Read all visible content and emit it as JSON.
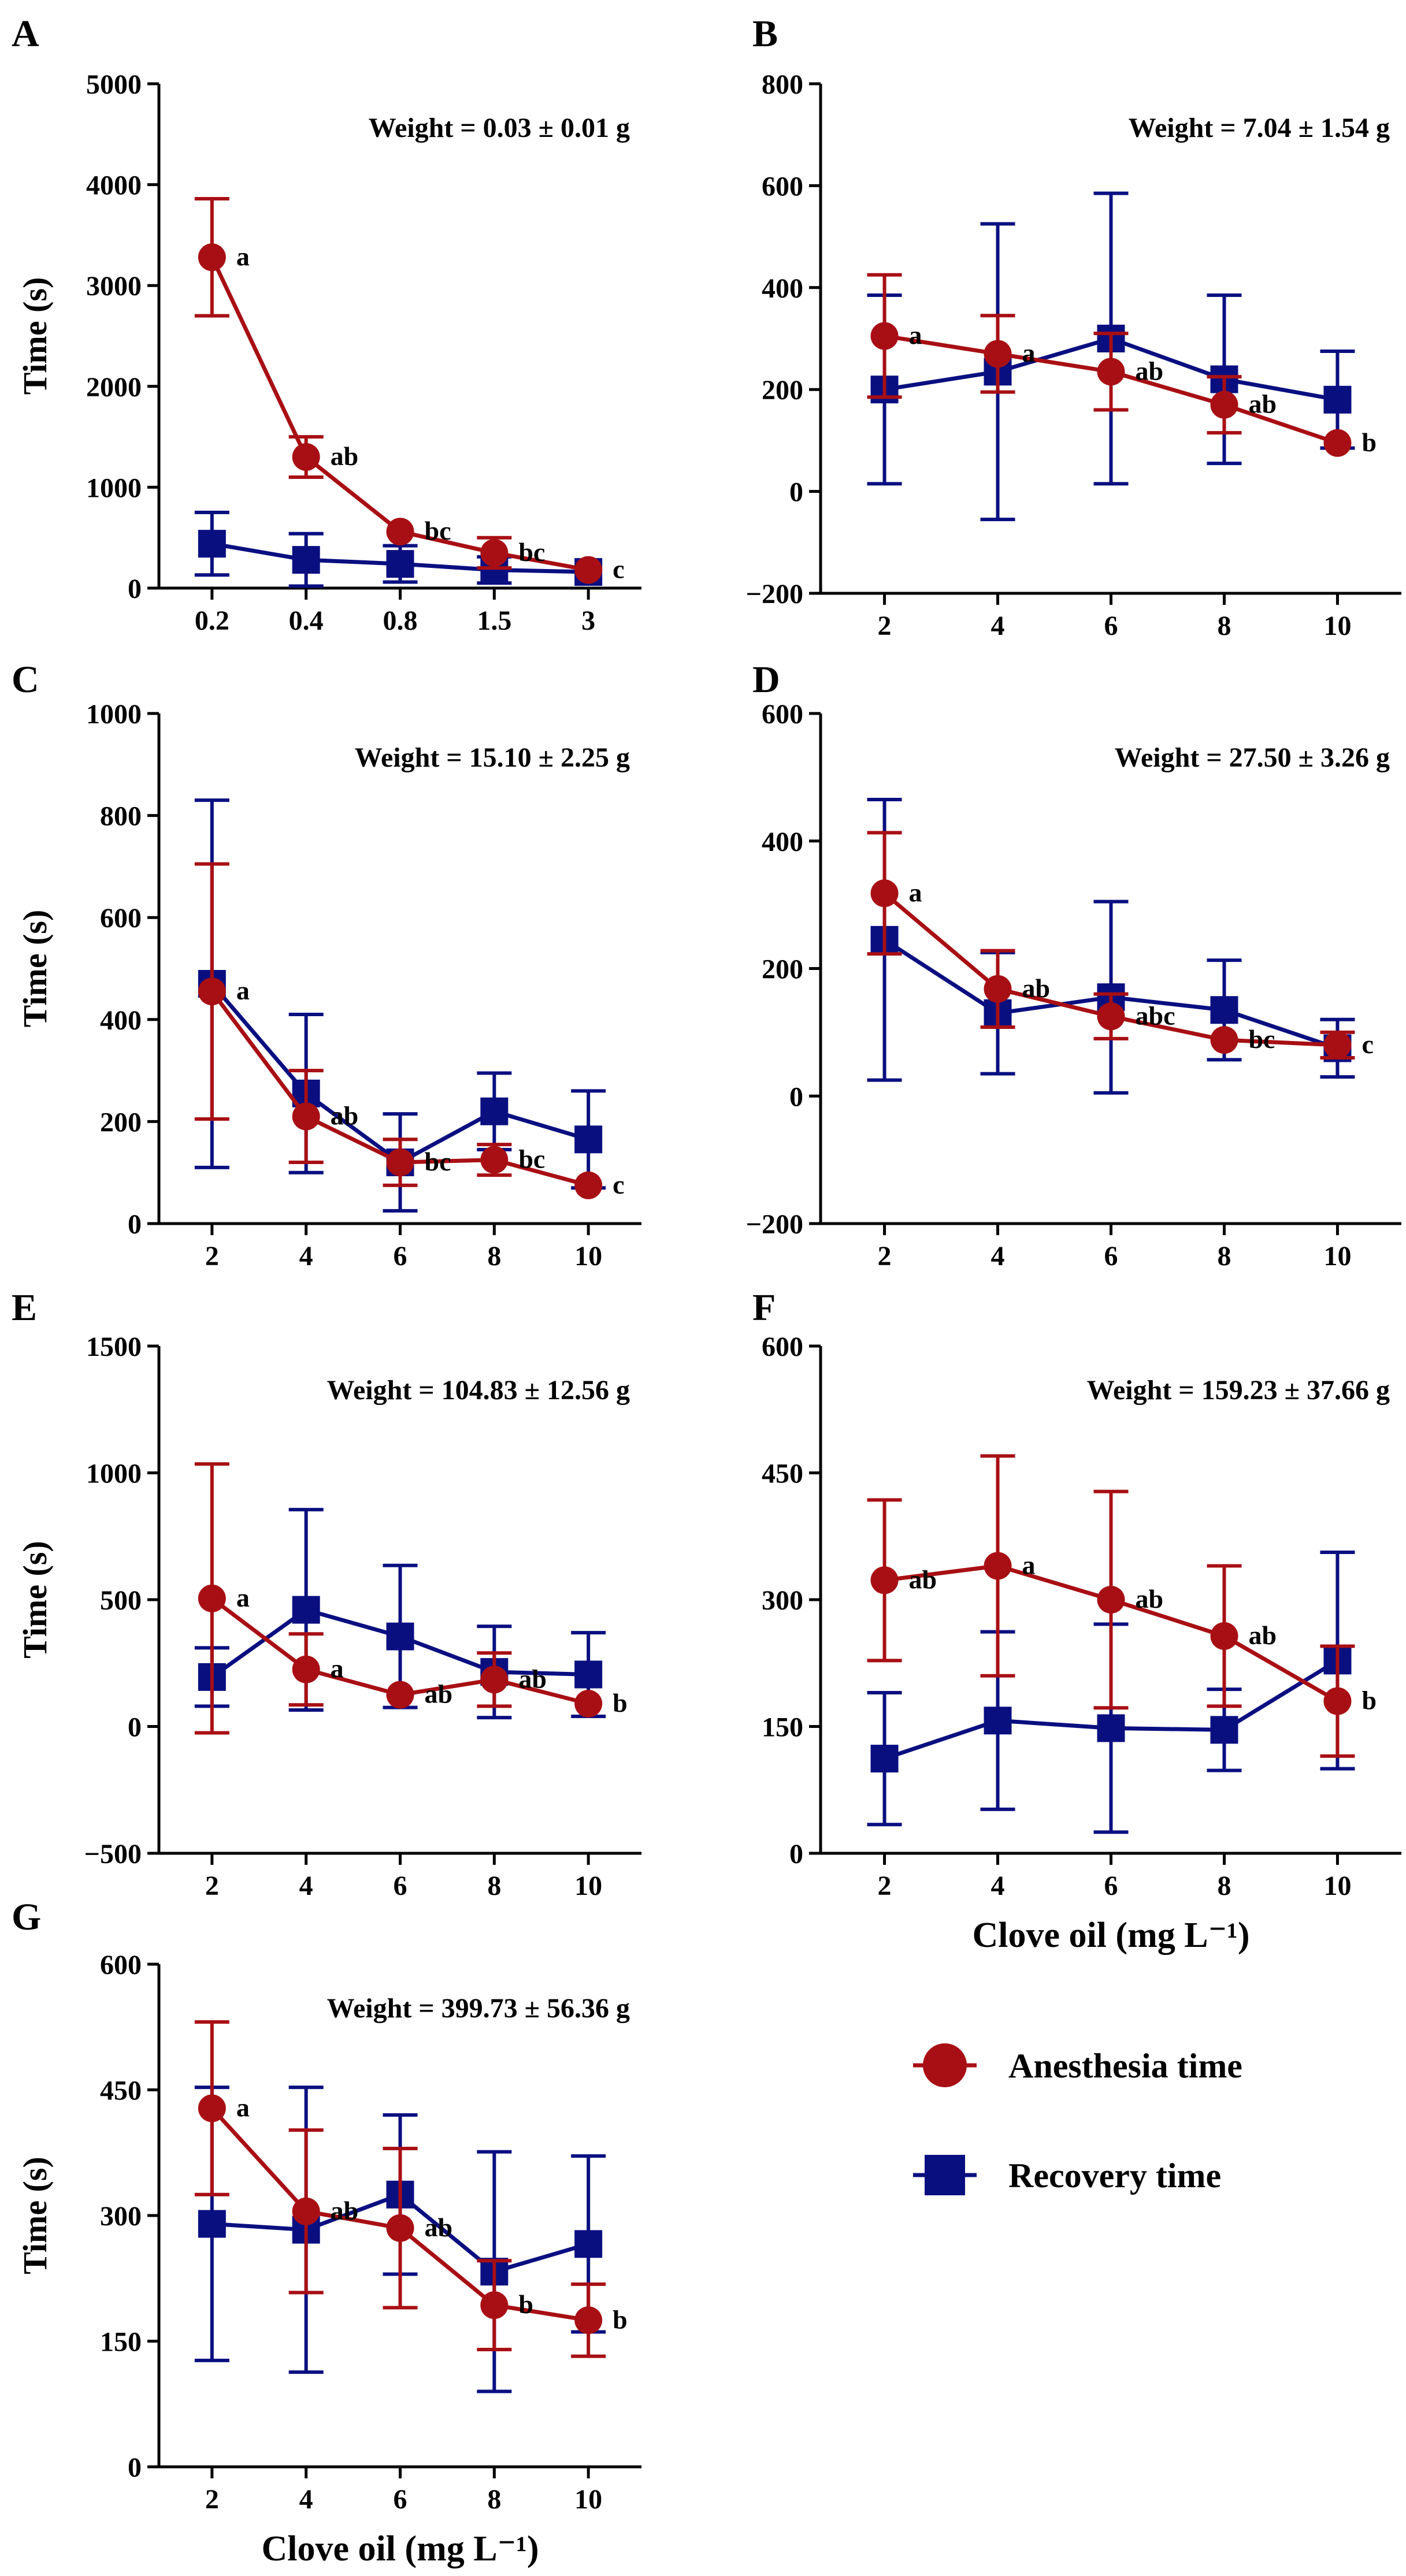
{
  "figure": {
    "colors": {
      "anesthesia": "#A80F14",
      "recovery": "#0A0F80",
      "axis": "#000000"
    },
    "legend": {
      "anesthesia_label": "Anesthesia time",
      "recovery_label": "Recovery time"
    }
  },
  "chart_data": [
    {
      "panel": "A",
      "type": "line",
      "title": "",
      "weight_label": "Weight = 0.03 ± 0.01 g",
      "xlabel": "",
      "ylabel": "Time (s)",
      "categories": [
        "0.2",
        "0.4",
        "0.8",
        "1.5",
        "3"
      ],
      "ylim": [
        0,
        5000
      ],
      "yticks": [
        0,
        1000,
        2000,
        3000,
        4000,
        5000
      ],
      "series": [
        {
          "name": "Anesthesia time",
          "values": [
            3280,
            1300,
            560,
            350,
            180
          ],
          "errors": [
            580,
            200,
            0,
            150,
            0
          ],
          "letters": [
            "a",
            "ab",
            "bc",
            "bc",
            "c"
          ]
        },
        {
          "name": "Recovery time",
          "values": [
            440,
            280,
            240,
            180,
            160
          ],
          "errors": [
            310,
            260,
            180,
            130,
            0
          ]
        }
      ]
    },
    {
      "panel": "B",
      "type": "line",
      "title": "",
      "weight_label": "Weight = 7.04 ± 1.54 g",
      "xlabel": "",
      "ylabel": "",
      "categories": [
        "2",
        "4",
        "6",
        "8",
        "10"
      ],
      "ylim": [
        -200,
        800
      ],
      "yticks": [
        -200,
        0,
        200,
        400,
        600,
        800
      ],
      "series": [
        {
          "name": "Anesthesia time",
          "values": [
            305,
            270,
            235,
            170,
            95
          ],
          "errors": [
            120,
            75,
            75,
            55,
            0
          ],
          "letters": [
            "a",
            "a",
            "ab",
            "ab",
            "b"
          ]
        },
        {
          "name": "Recovery time",
          "values": [
            200,
            235,
            300,
            220,
            180
          ],
          "errors": [
            185,
            290,
            285,
            165,
            95
          ]
        }
      ]
    },
    {
      "panel": "C",
      "type": "line",
      "title": "",
      "weight_label": "Weight = 15.10 ± 2.25 g",
      "xlabel": "",
      "ylabel": "Time (s)",
      "categories": [
        "2",
        "4",
        "6",
        "8",
        "10"
      ],
      "ylim": [
        0,
        1000
      ],
      "yticks": [
        0,
        200,
        400,
        600,
        800,
        1000
      ],
      "series": [
        {
          "name": "Anesthesia time",
          "values": [
            455,
            210,
            120,
            125,
            75
          ],
          "errors": [
            250,
            90,
            45,
            30,
            0
          ],
          "letters": [
            "a",
            "ab",
            "bc",
            "bc",
            "c"
          ]
        },
        {
          "name": "Recovery time",
          "values": [
            470,
            255,
            120,
            220,
            165
          ],
          "errors": [
            360,
            155,
            95,
            75,
            95
          ]
        }
      ]
    },
    {
      "panel": "D",
      "type": "line",
      "title": "",
      "weight_label": "Weight = 27.50 ± 3.26 g",
      "xlabel": "",
      "ylabel": "",
      "categories": [
        "2",
        "4",
        "6",
        "8",
        "10"
      ],
      "ylim": [
        -200,
        600
      ],
      "yticks": [
        -200,
        0,
        200,
        400,
        600
      ],
      "series": [
        {
          "name": "Anesthesia time",
          "values": [
            318,
            168,
            125,
            88,
            80
          ],
          "errors": [
            95,
            60,
            35,
            0,
            20
          ],
          "letters": [
            "a",
            "ab",
            "abc",
            "bc",
            "c"
          ]
        },
        {
          "name": "Recovery time",
          "values": [
            245,
            130,
            155,
            135,
            75
          ],
          "errors": [
            220,
            95,
            150,
            78,
            45
          ]
        }
      ]
    },
    {
      "panel": "E",
      "type": "line",
      "title": "",
      "weight_label": "Weight = 104.83 ± 12.56 g",
      "xlabel": "",
      "ylabel": "Time (s)",
      "categories": [
        "2",
        "4",
        "6",
        "8",
        "10"
      ],
      "ylim": [
        -500,
        1500
      ],
      "yticks": [
        -500,
        0,
        500,
        1000,
        1500
      ],
      "series": [
        {
          "name": "Anesthesia time",
          "values": [
            505,
            225,
            125,
            185,
            90
          ],
          "errors": [
            530,
            140,
            0,
            105,
            0
          ],
          "letters": [
            "a",
            "a",
            "ab",
            "ab",
            "b"
          ]
        },
        {
          "name": "Recovery time",
          "values": [
            195,
            460,
            355,
            215,
            205
          ],
          "errors": [
            115,
            395,
            280,
            180,
            165
          ]
        }
      ]
    },
    {
      "panel": "F",
      "type": "line",
      "title": "",
      "weight_label": "Weight = 159.23 ± 37.66 g",
      "xlabel": "Clove oil  (mg L⁻¹)",
      "ylabel": "",
      "categories": [
        "2",
        "4",
        "6",
        "8",
        "10"
      ],
      "ylim": [
        0,
        600
      ],
      "yticks": [
        0,
        150,
        300,
        450,
        600
      ],
      "series": [
        {
          "name": "Anesthesia time",
          "values": [
            323,
            340,
            300,
            257,
            180
          ],
          "errors": [
            95,
            130,
            128,
            83,
            65
          ],
          "letters": [
            "ab",
            "a",
            "ab",
            "ab",
            "b"
          ]
        },
        {
          "name": "Recovery time",
          "values": [
            112,
            157,
            148,
            146,
            228
          ],
          "errors": [
            78,
            105,
            123,
            48,
            128
          ]
        }
      ]
    },
    {
      "panel": "G",
      "type": "line",
      "title": "",
      "weight_label": "Weight = 399.73 ± 56.36 g",
      "xlabel": "Clove oil  (mg L⁻¹)",
      "ylabel": "Time (s)",
      "categories": [
        "2",
        "4",
        "6",
        "8",
        "10"
      ],
      "ylim": [
        0,
        600
      ],
      "yticks": [
        0,
        150,
        300,
        450,
        600
      ],
      "series": [
        {
          "name": "Anesthesia time",
          "values": [
            428,
            305,
            285,
            193,
            175
          ],
          "errors": [
            103,
            97,
            95,
            53,
            43
          ],
          "letters": [
            "a",
            "ab",
            "ab",
            "b",
            "b"
          ]
        },
        {
          "name": "Recovery time",
          "values": [
            290,
            283,
            325,
            233,
            266
          ],
          "errors": [
            163,
            170,
            95,
            143,
            105
          ]
        }
      ]
    }
  ]
}
